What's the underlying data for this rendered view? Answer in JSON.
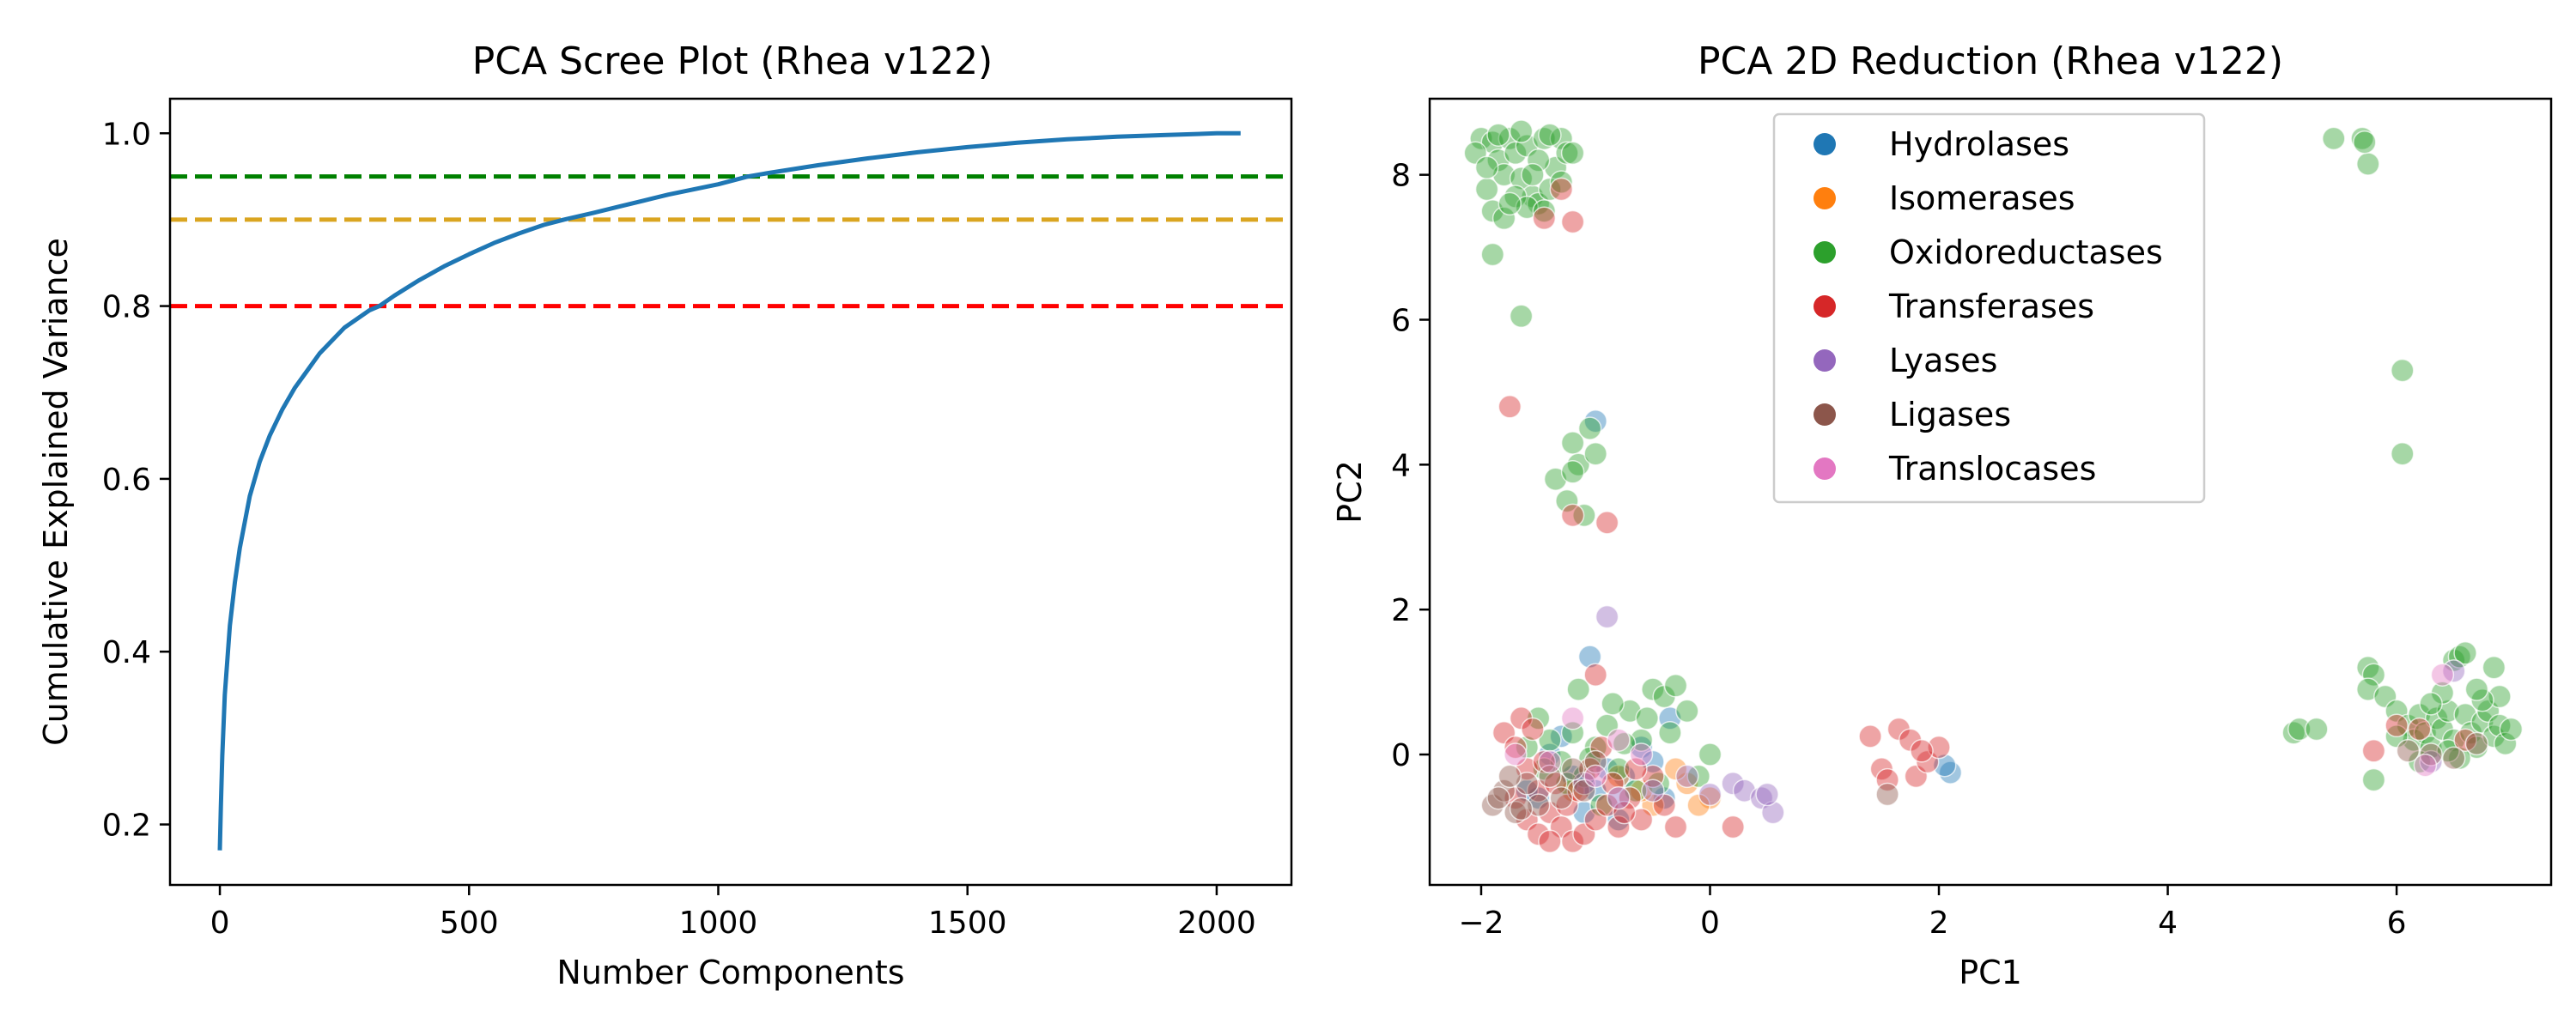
{
  "chart_data": [
    {
      "type": "line",
      "title": "PCA Scree Plot (Rhea v122)",
      "xlabel": "Number Components",
      "ylabel": "Cumulative Explained Variance",
      "xlim": [
        -100,
        2150
      ],
      "ylim": [
        0.13,
        1.04
      ],
      "x_ticks": [
        0,
        500,
        1000,
        1500,
        2000
      ],
      "y_ticks": [
        0.2,
        0.4,
        0.6,
        0.8,
        1.0
      ],
      "x_tick_labels": [
        "0",
        "500",
        "1000",
        "1500",
        "2000"
      ],
      "y_tick_labels": [
        "0.2",
        "0.4",
        "0.6",
        "0.8",
        "1.0"
      ],
      "grid": false,
      "series": [
        {
          "color": "#1f77b4",
          "x": [
            0,
            2,
            5,
            10,
            20,
            30,
            40,
            50,
            60,
            80,
            100,
            125,
            150,
            175,
            200,
            250,
            300,
            320,
            350,
            400,
            450,
            500,
            550,
            600,
            650,
            690,
            750,
            800,
            850,
            900,
            950,
            1000,
            1060,
            1100,
            1200,
            1300,
            1400,
            1500,
            1600,
            1700,
            1800,
            1900,
            2000,
            2048
          ],
          "values": [
            0.17,
            0.22,
            0.28,
            0.35,
            0.43,
            0.48,
            0.52,
            0.55,
            0.58,
            0.62,
            0.65,
            0.68,
            0.705,
            0.725,
            0.745,
            0.775,
            0.795,
            0.8,
            0.812,
            0.83,
            0.846,
            0.86,
            0.873,
            0.884,
            0.894,
            0.9,
            0.908,
            0.915,
            0.922,
            0.929,
            0.935,
            0.941,
            0.95,
            0.954,
            0.963,
            0.971,
            0.978,
            0.984,
            0.989,
            0.993,
            0.996,
            0.998,
            1.0,
            1.0
          ]
        }
      ],
      "reference_lines": [
        {
          "y": 0.95,
          "color": "#008000",
          "style": "dashed"
        },
        {
          "y": 0.9,
          "color": "#daa520",
          "style": "dashed"
        },
        {
          "y": 0.8,
          "color": "#ff0000",
          "style": "dashed"
        }
      ]
    },
    {
      "type": "scatter",
      "title": "PCA 2D Reduction (Rhea v122)",
      "xlabel": "PC1",
      "ylabel": "PC2",
      "xlim": [
        -2.45,
        7.35
      ],
      "ylim": [
        -1.8,
        9.05
      ],
      "x_ticks": [
        -2,
        0,
        2,
        4,
        6
      ],
      "y_ticks": [
        0,
        2,
        4,
        6,
        8
      ],
      "x_tick_labels": [
        "−2",
        "0",
        "2",
        "4",
        "6"
      ],
      "y_tick_labels": [
        "0",
        "2",
        "4",
        "6",
        "8"
      ],
      "grid": false,
      "legend_position": "top-center",
      "series": [
        {
          "name": "Hydrolases",
          "color": "#1f77b4",
          "points": [
            [
              -1.0,
              4.6
            ],
            [
              -1.3,
              0.25
            ],
            [
              -1.0,
              -0.5
            ],
            [
              -0.75,
              -0.3
            ],
            [
              -0.35,
              0.5
            ],
            [
              -0.9,
              -0.2
            ],
            [
              -1.5,
              -0.6
            ],
            [
              -1.1,
              -0.8
            ],
            [
              -0.6,
              0.1
            ],
            [
              -1.2,
              -0.3
            ],
            [
              -0.4,
              -0.6
            ],
            [
              2.1,
              -0.25
            ],
            [
              2.05,
              -0.15
            ],
            [
              -1.05,
              1.35
            ],
            [
              -1.4,
              0.0
            ],
            [
              -0.8,
              -0.9
            ],
            [
              -1.6,
              -0.5
            ],
            [
              -0.5,
              -0.1
            ]
          ]
        },
        {
          "name": "Isomerases",
          "color": "#ff7f0e",
          "points": [
            [
              0.0,
              -0.6
            ],
            [
              -0.2,
              -0.4
            ],
            [
              -0.5,
              -0.7
            ],
            [
              -0.8,
              -0.3
            ],
            [
              -1.2,
              -0.5
            ],
            [
              -0.3,
              -0.2
            ],
            [
              -0.1,
              -0.7
            ],
            [
              -0.6,
              -0.5
            ]
          ]
        },
        {
          "name": "Oxidoreductases",
          "color": "#2ca02c",
          "points": [
            [
              -2.0,
              8.5
            ],
            [
              -1.9,
              8.45
            ],
            [
              -1.85,
              8.2
            ],
            [
              -1.8,
              8.0
            ],
            [
              -1.75,
              8.5
            ],
            [
              -1.7,
              8.3
            ],
            [
              -1.65,
              7.95
            ],
            [
              -1.6,
              8.4
            ],
            [
              -1.55,
              7.7
            ],
            [
              -1.5,
              7.6
            ],
            [
              -1.45,
              8.5
            ],
            [
              -1.4,
              7.8
            ],
            [
              -1.35,
              8.1
            ],
            [
              -1.3,
              8.5
            ],
            [
              -1.25,
              8.3
            ],
            [
              -1.95,
              7.8
            ],
            [
              -1.9,
              7.5
            ],
            [
              -1.8,
              7.4
            ],
            [
              -1.7,
              7.7
            ],
            [
              -1.6,
              7.55
            ],
            [
              -1.5,
              8.2
            ],
            [
              -1.4,
              8.55
            ],
            [
              -2.05,
              8.3
            ],
            [
              -1.95,
              8.1
            ],
            [
              -1.85,
              8.55
            ],
            [
              -1.75,
              7.6
            ],
            [
              -1.65,
              8.6
            ],
            [
              -1.55,
              8.0
            ],
            [
              -1.45,
              7.5
            ],
            [
              -1.3,
              7.9
            ],
            [
              -1.2,
              8.3
            ],
            [
              -1.9,
              6.9
            ],
            [
              -1.65,
              6.05
            ],
            [
              -1.35,
              3.8
            ],
            [
              -1.2,
              4.3
            ],
            [
              -1.15,
              4.0
            ],
            [
              -1.05,
              4.5
            ],
            [
              -1.0,
              4.15
            ],
            [
              -1.25,
              3.5
            ],
            [
              -1.1,
              3.3
            ],
            [
              -1.2,
              3.9
            ],
            [
              -1.5,
              0.5
            ],
            [
              -1.4,
              0.2
            ],
            [
              -1.3,
              -0.1
            ],
            [
              -1.2,
              0.3
            ],
            [
              -1.1,
              -0.3
            ],
            [
              -1.0,
              0.1
            ],
            [
              -0.9,
              0.4
            ],
            [
              -0.8,
              -0.2
            ],
            [
              -0.7,
              0.6
            ],
            [
              -0.6,
              0.2
            ],
            [
              -0.5,
              0.9
            ],
            [
              -0.4,
              0.8
            ],
            [
              -0.3,
              0.95
            ],
            [
              -0.2,
              0.6
            ],
            [
              -0.1,
              -0.3
            ],
            [
              0.0,
              0.0
            ],
            [
              -1.15,
              0.9
            ],
            [
              -0.85,
              0.7
            ],
            [
              -0.65,
              -0.5
            ],
            [
              -0.45,
              -0.4
            ],
            [
              -0.95,
              -0.7
            ],
            [
              -1.25,
              -0.4
            ],
            [
              -1.45,
              -0.2
            ],
            [
              -1.6,
              0.1
            ],
            [
              -0.55,
              0.5
            ],
            [
              -0.75,
              0.15
            ],
            [
              -1.05,
              -0.05
            ],
            [
              -0.35,
              0.3
            ],
            [
              5.1,
              0.3
            ],
            [
              5.15,
              0.35
            ],
            [
              5.3,
              0.35
            ],
            [
              5.45,
              8.5
            ],
            [
              5.7,
              8.5
            ],
            [
              5.75,
              8.15
            ],
            [
              5.72,
              8.45
            ],
            [
              6.05,
              5.3
            ],
            [
              6.05,
              4.15
            ],
            [
              5.75,
              1.2
            ],
            [
              5.8,
              1.1
            ],
            [
              5.75,
              0.9
            ],
            [
              5.9,
              0.8
            ],
            [
              6.0,
              0.6
            ],
            [
              6.1,
              0.4
            ],
            [
              6.15,
              0.2
            ],
            [
              6.2,
              0.55
            ],
            [
              6.25,
              0.3
            ],
            [
              6.3,
              0.1
            ],
            [
              6.35,
              0.5
            ],
            [
              6.4,
              0.35
            ],
            [
              6.45,
              0.6
            ],
            [
              6.5,
              0.2
            ],
            [
              6.5,
              1.3
            ],
            [
              6.55,
              1.35
            ],
            [
              6.6,
              0.55
            ],
            [
              6.65,
              0.3
            ],
            [
              6.7,
              0.1
            ],
            [
              6.75,
              0.45
            ],
            [
              6.8,
              0.6
            ],
            [
              6.85,
              1.2
            ],
            [
              6.85,
              0.25
            ],
            [
              6.9,
              0.8
            ],
            [
              6.9,
              0.4
            ],
            [
              6.95,
              0.15
            ],
            [
              7.0,
              0.35
            ],
            [
              6.4,
              0.85
            ],
            [
              6.6,
              1.4
            ],
            [
              6.3,
              0.7
            ],
            [
              6.2,
              -0.1
            ],
            [
              6.55,
              -0.05
            ],
            [
              6.75,
              0.75
            ],
            [
              5.8,
              -0.35
            ],
            [
              6.0,
              0.25
            ],
            [
              6.45,
              0.05
            ],
            [
              6.7,
              0.9
            ]
          ]
        },
        {
          "name": "Transferases",
          "color": "#d62728",
          "points": [
            [
              -1.75,
              4.8
            ],
            [
              -1.45,
              7.4
            ],
            [
              -1.3,
              7.8
            ],
            [
              -1.2,
              7.35
            ],
            [
              -1.2,
              3.3
            ],
            [
              -0.9,
              3.2
            ],
            [
              -1.0,
              1.1
            ],
            [
              -1.8,
              0.3
            ],
            [
              -1.7,
              0.1
            ],
            [
              -1.6,
              -0.2
            ],
            [
              -1.5,
              -0.5
            ],
            [
              -1.4,
              -0.8
            ],
            [
              -1.3,
              -1.0
            ],
            [
              -1.2,
              -1.2
            ],
            [
              -1.1,
              -1.1
            ],
            [
              -1.0,
              -0.9
            ],
            [
              -0.9,
              -0.7
            ],
            [
              -0.8,
              -1.0
            ],
            [
              -0.7,
              -0.6
            ],
            [
              -0.6,
              -0.9
            ],
            [
              -0.5,
              -0.3
            ],
            [
              -0.4,
              -0.7
            ],
            [
              -0.3,
              -1.0
            ],
            [
              -1.65,
              0.5
            ],
            [
              -1.55,
              0.35
            ],
            [
              -1.45,
              -0.1
            ],
            [
              -1.35,
              -0.4
            ],
            [
              -1.25,
              -0.7
            ],
            [
              -1.15,
              -0.5
            ],
            [
              -1.05,
              -0.2
            ],
            [
              -0.95,
              0.1
            ],
            [
              -0.85,
              -0.4
            ],
            [
              -0.75,
              -0.8
            ],
            [
              -0.65,
              -0.2
            ],
            [
              -1.7,
              -0.6
            ],
            [
              -1.6,
              -0.9
            ],
            [
              -1.5,
              -1.1
            ],
            [
              -1.4,
              -1.2
            ],
            [
              0.2,
              -1.0
            ],
            [
              1.4,
              0.25
            ],
            [
              1.5,
              -0.2
            ],
            [
              1.55,
              -0.35
            ],
            [
              1.65,
              0.35
            ],
            [
              1.75,
              0.2
            ],
            [
              1.8,
              -0.3
            ],
            [
              1.9,
              -0.1
            ],
            [
              2.0,
              0.1
            ],
            [
              1.85,
              0.05
            ],
            [
              5.8,
              0.05
            ],
            [
              6.2,
              0.35
            ],
            [
              6.6,
              0.2
            ],
            [
              6.0,
              0.4
            ]
          ]
        },
        {
          "name": "Lyases",
          "color": "#9467bd",
          "points": [
            [
              -0.9,
              1.9
            ],
            [
              0.2,
              -0.4
            ],
            [
              0.3,
              -0.5
            ],
            [
              0.45,
              -0.6
            ],
            [
              0.55,
              -0.8
            ],
            [
              0.5,
              -0.55
            ],
            [
              -0.2,
              -0.3
            ],
            [
              -0.5,
              -0.5
            ],
            [
              -0.8,
              -0.6
            ],
            [
              -1.1,
              -0.4
            ],
            [
              0.0,
              -0.55
            ],
            [
              6.3,
              -0.1
            ],
            [
              6.5,
              1.15
            ]
          ]
        },
        {
          "name": "Ligases",
          "color": "#8c564b",
          "points": [
            [
              -1.9,
              -0.7
            ],
            [
              -1.8,
              -0.5
            ],
            [
              -1.7,
              -0.8
            ],
            [
              -1.6,
              -0.4
            ],
            [
              -1.5,
              -0.7
            ],
            [
              -1.4,
              -0.3
            ],
            [
              -1.3,
              -0.6
            ],
            [
              -1.2,
              -0.2
            ],
            [
              -1.1,
              -0.5
            ],
            [
              -1.0,
              -0.1
            ],
            [
              -1.85,
              -0.6
            ],
            [
              -1.75,
              -0.3
            ],
            [
              -1.65,
              -0.75
            ],
            [
              1.55,
              -0.55
            ],
            [
              6.3,
              0.0
            ],
            [
              6.5,
              -0.05
            ],
            [
              6.7,
              0.15
            ],
            [
              6.1,
              0.05
            ]
          ]
        },
        {
          "name": "Translocases",
          "color": "#e377c2",
          "points": [
            [
              -1.7,
              0.0
            ],
            [
              -1.2,
              0.5
            ],
            [
              -0.8,
              0.2
            ],
            [
              -1.4,
              -0.1
            ],
            [
              -1.0,
              -0.3
            ],
            [
              -0.6,
              0.0
            ],
            [
              6.25,
              -0.15
            ],
            [
              6.4,
              1.1
            ]
          ]
        }
      ]
    }
  ]
}
